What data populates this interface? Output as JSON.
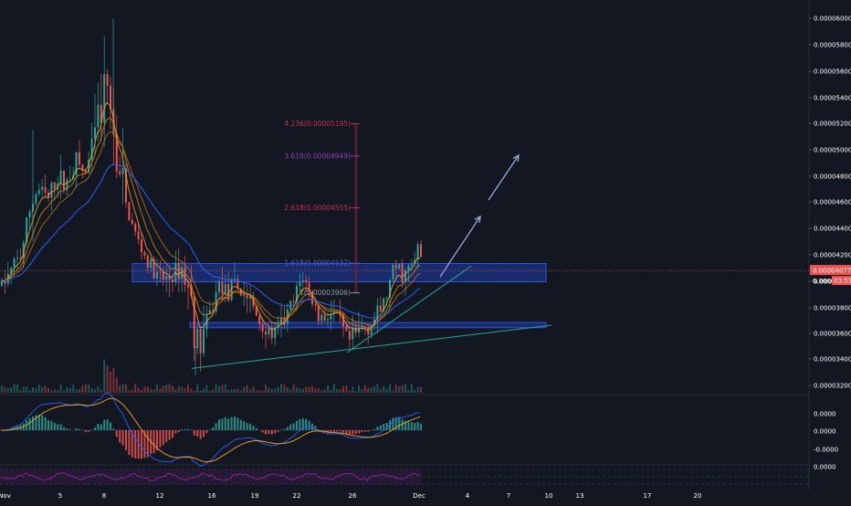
{
  "chart_data": {
    "type": "candlestick",
    "title": "",
    "y_axis": {
      "tick_labels": [
        "0.00006000",
        "0.00005800",
        "0.00005600",
        "0.00005400",
        "0.00005200",
        "0.00005000",
        "0.00004800",
        "0.00004600",
        "0.00004400",
        "0.00004200",
        "0.00004000",
        "0.00003800",
        "0.00003600",
        "0.00003400",
        "0.00003200"
      ],
      "ylim": [
        3.12e-05,
        6.12e-05
      ]
    },
    "x_axis": {
      "tick_labels": [
        "Nov",
        "5",
        "8",
        "12",
        "16",
        "19",
        "22",
        "26",
        "Dec",
        "4",
        "7",
        "10",
        "13",
        "17",
        "20"
      ]
    },
    "price_path": [
      [
        0,
        3.96
      ],
      [
        10,
        4.05
      ],
      [
        22,
        4.2
      ],
      [
        32,
        4.55
      ],
      [
        40,
        4.7
      ],
      [
        52,
        4.62
      ],
      [
        62,
        4.8
      ],
      [
        70,
        4.72
      ],
      [
        82,
        4.92
      ],
      [
        92,
        4.8
      ],
      [
        104,
        5.1
      ],
      [
        112,
        5.35
      ],
      [
        118,
        5.45
      ],
      [
        124,
        5.05
      ],
      [
        130,
        4.75
      ],
      [
        140,
        4.5
      ],
      [
        150,
        4.3
      ],
      [
        160,
        4.15
      ],
      [
        172,
        4.0
      ],
      [
        185,
        4.02
      ],
      [
        198,
        4.1
      ],
      [
        208,
        3.85
      ],
      [
        215,
        3.5
      ],
      [
        222,
        3.6
      ],
      [
        232,
        3.8
      ],
      [
        240,
        4.0
      ],
      [
        248,
        3.9
      ],
      [
        258,
        3.95
      ],
      [
        270,
        3.88
      ],
      [
        282,
        3.7
      ],
      [
        292,
        3.6
      ],
      [
        300,
        3.58
      ],
      [
        312,
        3.72
      ],
      [
        322,
        3.85
      ],
      [
        330,
        4.05
      ],
      [
        338,
        3.9
      ],
      [
        348,
        3.72
      ],
      [
        360,
        3.75
      ],
      [
        370,
        3.7
      ],
      [
        380,
        3.52
      ],
      [
        390,
        3.6
      ],
      [
        400,
        3.65
      ],
      [
        412,
        3.72
      ],
      [
        422,
        3.88
      ],
      [
        432,
        4.1
      ],
      [
        442,
        4.05
      ],
      [
        452,
        4.12
      ],
      [
        458,
        4.28
      ],
      [
        462,
        4.08
      ]
    ],
    "current_price_label": "0.00004077",
    "countdown_label": "03:53",
    "fib_levels": [
      {
        "ratio": "4.236",
        "price_label": "0.00005195",
        "text": "4.236(0.00005195)"
      },
      {
        "ratio": "3.618",
        "price_label": "0.00004949",
        "text": "3.618(0.00004949)"
      },
      {
        "ratio": "2.618",
        "price_label": "0.00004555",
        "text": "2.618(0.00004555)"
      },
      {
        "ratio": "1.618",
        "price_label": "0.00004132",
        "text": "1.618(0.00004132)"
      },
      {
        "ratio": "1",
        "price_label": "0.00003906",
        "text": "1(0.00003906)"
      }
    ],
    "zones": [
      {
        "name": "resistance-zone",
        "y_top": 4.13e-05,
        "y_bottom": 3.99e-05
      },
      {
        "name": "support-zone",
        "y_top": 3.68e-05,
        "y_bottom": 3.64e-05
      }
    ],
    "trendlines": [
      {
        "name": "lower-trendline",
        "y_start": 3.33e-05,
        "y_end": 3.66e-05
      },
      {
        "name": "inner-trendline",
        "y_start": 3.45e-05,
        "y_end": 4.11e-05
      }
    ],
    "indicator_axis_labels": [
      "0.0000",
      "0.0000",
      "-0.0000",
      "0.0000"
    ],
    "colors": {
      "background": "#131722",
      "up": "#26a69a",
      "down": "#ef5350",
      "ma_blue": "#2962ff",
      "ma_orange": "#f7a520",
      "zone": "#1e3ea8",
      "fib_red": "#c0324f",
      "fib_purple": "#8e44ad",
      "arrow": "#9fa8da",
      "trend": "#26a69a",
      "price_line": "#ef5350",
      "axis_text": "#ffffff",
      "rsi": "#9c27b0"
    }
  }
}
